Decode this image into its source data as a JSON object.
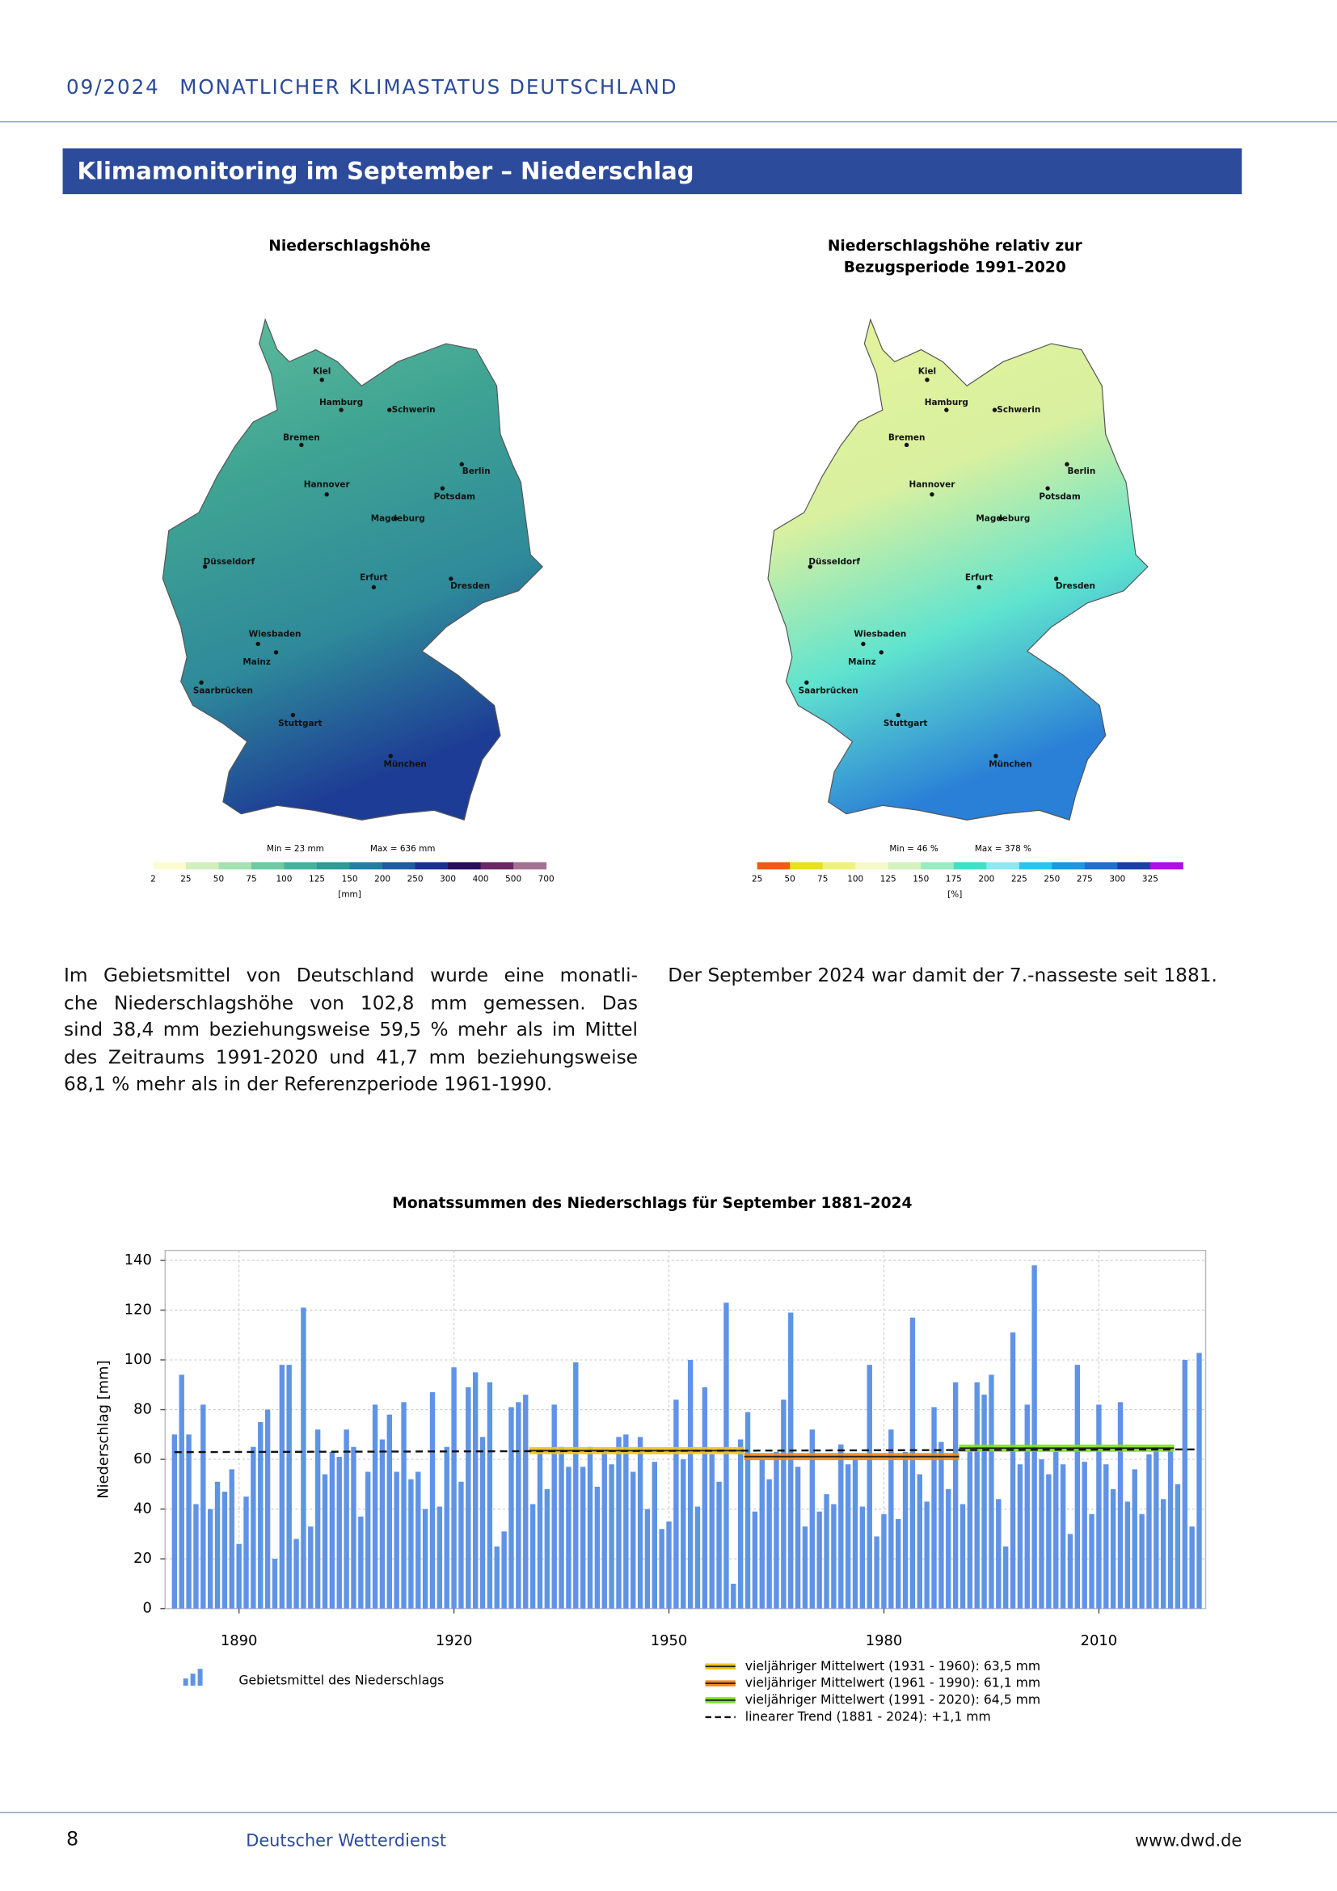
{
  "header": {
    "issue": "09/2024",
    "title": "MONATLICHER KLIMASTATUS DEUTSCHLAND"
  },
  "section_title": "Klimamonitoring im September – Niederschlag",
  "maps": [
    {
      "title": [
        "Niederschlagshöhe"
      ],
      "min_label": "Min = 23 mm",
      "max_label": "Max = 636 mm",
      "unit": "[mm]",
      "colorbar": {
        "ticks": [
          2,
          25,
          50,
          75,
          100,
          125,
          150,
          200,
          250,
          300,
          400,
          500,
          700
        ],
        "colors": [
          "#fbfdd0",
          "#d2efc0",
          "#a5e1b1",
          "#6dcaa2",
          "#45b29c",
          "#2e9b96",
          "#2180a1",
          "#1f5ca3",
          "#1b3191",
          "#2a0e5c",
          "#6b2766",
          "#a47293"
        ]
      }
    },
    {
      "title": [
        "Niederschlagshöhe relativ zur",
        "Bezugsperiode 1991–2020"
      ],
      "min_label": "Min = 46 %",
      "max_label": "Max = 378 %",
      "unit": "[%]",
      "colorbar": {
        "ticks": [
          25,
          50,
          75,
          100,
          125,
          150,
          175,
          200,
          225,
          250,
          275,
          300,
          325
        ],
        "colors": [
          "#f05a14",
          "#e8e020",
          "#eef27a",
          "#f6f9c8",
          "#d4f2bd",
          "#99ecc0",
          "#3fe0c8",
          "#8ee8f2",
          "#2cc4ef",
          "#1e96e0",
          "#1f6fcf",
          "#1c3fa6",
          "#b010e0"
        ]
      }
    }
  ],
  "cities": [
    "Kiel",
    "Hamburg",
    "Schwerin",
    "Bremen",
    "Berlin",
    "Potsdam",
    "Hannover",
    "Magdeburg",
    "Düsseldorf",
    "Erfurt",
    "Dresden",
    "Wiesbaden",
    "Mainz",
    "Saarbrücken",
    "Stuttgart",
    "München"
  ],
  "paragraphs": [
    [
      "Im Gebietsmittel von Deutschland wurde eine monatli-",
      "che Niederschlagshöhe von 102,8 mm gemessen. Das",
      "sind 38,4 mm beziehungsweise 59,5 % mehr als im Mittel",
      "des Zeitraums 1991-2020 und 41,7 mm beziehungsweise",
      "68,1 % mehr als in der Referenzperiode 1961-1990."
    ],
    [
      "Der September 2024 war damit der 7.-nasseste seit 1881."
    ]
  ],
  "chart_data": {
    "type": "bar",
    "title": "Monatssummen des Niederschlags für September 1881–2024",
    "ylabel": "Niederschlag [mm]",
    "x": [
      1881,
      1882,
      1883,
      1884,
      1885,
      1886,
      1887,
      1888,
      1889,
      1890,
      1891,
      1892,
      1893,
      1894,
      1895,
      1896,
      1897,
      1898,
      1899,
      1900,
      1901,
      1902,
      1903,
      1904,
      1905,
      1906,
      1907,
      1908,
      1909,
      1910,
      1911,
      1912,
      1913,
      1914,
      1915,
      1916,
      1917,
      1918,
      1919,
      1920,
      1921,
      1922,
      1923,
      1924,
      1925,
      1926,
      1927,
      1928,
      1929,
      1930,
      1931,
      1932,
      1933,
      1934,
      1935,
      1936,
      1937,
      1938,
      1939,
      1940,
      1941,
      1942,
      1943,
      1944,
      1945,
      1946,
      1947,
      1948,
      1949,
      1950,
      1951,
      1952,
      1953,
      1954,
      1955,
      1956,
      1957,
      1958,
      1959,
      1960,
      1961,
      1962,
      1963,
      1964,
      1965,
      1966,
      1967,
      1968,
      1969,
      1970,
      1971,
      1972,
      1973,
      1974,
      1975,
      1976,
      1977,
      1978,
      1979,
      1980,
      1981,
      1982,
      1983,
      1984,
      1985,
      1986,
      1987,
      1988,
      1989,
      1990,
      1991,
      1992,
      1993,
      1994,
      1995,
      1996,
      1997,
      1998,
      1999,
      2000,
      2001,
      2002,
      2003,
      2004,
      2005,
      2006,
      2007,
      2008,
      2009,
      2010,
      2011,
      2012,
      2013,
      2014,
      2015,
      2016,
      2017,
      2018,
      2019,
      2020,
      2021,
      2022,
      2023,
      2024
    ],
    "series": [
      {
        "name": "Gebietsmittel des Niederschlags",
        "color": "#5f93e6",
        "values": [
          70,
          94,
          70,
          42,
          82,
          40,
          51,
          47,
          56,
          26,
          45,
          65,
          75,
          80,
          20,
          98,
          98,
          28,
          121,
          33,
          72,
          54,
          63,
          61,
          72,
          65,
          37,
          55,
          82,
          68,
          78,
          55,
          83,
          52,
          55,
          40,
          87,
          41,
          65,
          97,
          51,
          89,
          95,
          69,
          91,
          25,
          31,
          81,
          83,
          86,
          42,
          64,
          48,
          82,
          65,
          57,
          99,
          57,
          65,
          49,
          64,
          58,
          69,
          70,
          55,
          69,
          40,
          59,
          32,
          35,
          84,
          60,
          100,
          41,
          89,
          62,
          51,
          123,
          10,
          68,
          79,
          39,
          60,
          52,
          63,
          84,
          119,
          57,
          33,
          72,
          39,
          46,
          42,
          66,
          58,
          60,
          41,
          98,
          29,
          38,
          72,
          36,
          63,
          117,
          54,
          43,
          81,
          67,
          48,
          91,
          42,
          65,
          91,
          86,
          94,
          44,
          25,
          111,
          58,
          82,
          138,
          60,
          54,
          63,
          58,
          30,
          98,
          59,
          38,
          82,
          58,
          48,
          83,
          43,
          56,
          38,
          62,
          65,
          44,
          65,
          50,
          100,
          33,
          102.8
        ]
      }
    ],
    "means": [
      {
        "label": "vieljähriger Mittelwert (1931 - 1960): 63,5 mm",
        "value": 63.5,
        "from": 1931,
        "to": 1960,
        "color": "#f0c419"
      },
      {
        "label": "vieljähriger Mittelwert (1961 - 1990): 61,1 mm",
        "value": 61.1,
        "from": 1961,
        "to": 1990,
        "color": "#f08a1c"
      },
      {
        "label": "vieljähriger Mittelwert (1991 - 2020): 64,5 mm",
        "value": 64.5,
        "from": 1991,
        "to": 2020,
        "color": "#7de020"
      }
    ],
    "trend": {
      "label": "linearer Trend (1881 - 2024): +1,1 mm",
      "x": [
        1881,
        2024
      ],
      "values": [
        62.9,
        64.0
      ]
    },
    "xlim": [
      1879.7,
      2024.9
    ],
    "ylim": [
      0,
      144
    ],
    "xticks": [
      1890,
      1920,
      1950,
      1980,
      2010
    ],
    "yticks": [
      0,
      20,
      40,
      60,
      80,
      100,
      120,
      140
    ],
    "grid": true
  },
  "footer": {
    "page": "8",
    "publisher": "Deutscher Wetterdienst",
    "url": "www.dwd.de"
  }
}
